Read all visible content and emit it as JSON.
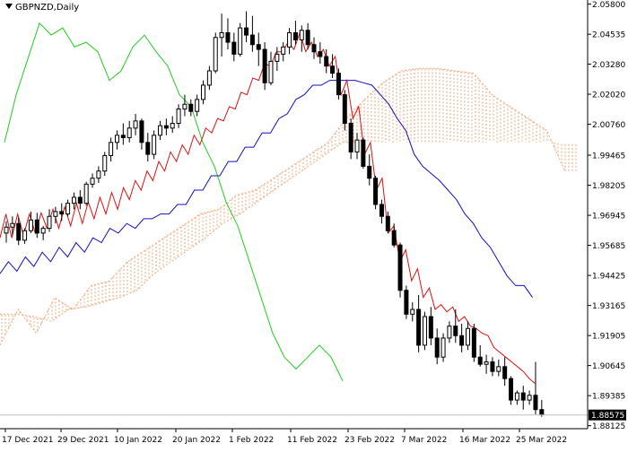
{
  "chart_data": {
    "type": "candlestick",
    "symbol": "GBPNZD",
    "timeframe": "Daily",
    "title": "GBPNZD,Daily",
    "y_ticks": [
      "2.05800",
      "2.04535",
      "2.03280",
      "2.02020",
      "2.00760",
      "1.99465",
      "1.98205",
      "1.96945",
      "1.95685",
      "1.94425",
      "1.93165",
      "1.91905",
      "1.90645",
      "1.89385",
      "1.88125"
    ],
    "ylim": [
      1.88,
      2.0597
    ],
    "x_ticks": [
      "17 Dec 2021",
      "29 Dec 2021",
      "10 Jan 2022",
      "20 Jan 2022",
      "1 Feb 2022",
      "11 Feb 2022",
      "23 Feb 2022",
      "7 Mar 2022",
      "16 Mar 2022",
      "25 Mar 2022"
    ],
    "current_price": "1.88575",
    "candles": [
      [
        1.962,
        1.967,
        1.958,
        1.9645
      ],
      [
        1.9645,
        1.969,
        1.961,
        1.966
      ],
      [
        1.966,
        1.9685,
        1.957,
        1.959
      ],
      [
        1.959,
        1.964,
        1.9575,
        1.963
      ],
      [
        1.963,
        1.971,
        1.962,
        1.9675
      ],
      [
        1.9675,
        1.9705,
        1.96,
        1.962
      ],
      [
        1.962,
        1.965,
        1.959,
        1.964
      ],
      [
        1.964,
        1.972,
        1.9625,
        1.969
      ],
      [
        1.969,
        1.973,
        1.966,
        1.971
      ],
      [
        1.971,
        1.9745,
        1.967,
        1.97
      ],
      [
        1.97,
        1.976,
        1.969,
        1.9745
      ],
      [
        1.9745,
        1.979,
        1.972,
        1.977
      ],
      [
        1.977,
        1.98,
        1.972,
        1.9745
      ],
      [
        1.9745,
        1.9835,
        1.9735,
        1.9825
      ],
      [
        1.9825,
        1.987,
        1.981,
        1.985
      ],
      [
        1.985,
        1.99,
        1.983,
        1.988
      ],
      [
        1.988,
        1.996,
        1.986,
        1.9945
      ],
      [
        1.9945,
        2.002,
        1.992,
        2.0
      ],
      [
        2.0,
        2.005,
        1.997,
        2.003
      ],
      [
        2.003,
        2.008,
        1.999,
        2.002
      ],
      [
        2.002,
        2.009,
        2.0,
        2.006
      ],
      [
        2.006,
        2.012,
        2.003,
        2.009
      ],
      [
        2.009,
        2.01,
        1.997,
        2.0
      ],
      [
        2.0,
        2.004,
        1.992,
        1.995
      ],
      [
        1.995,
        2.005,
        1.993,
        2.003
      ],
      [
        2.003,
        2.009,
        2.001,
        2.007
      ],
      [
        2.007,
        2.01,
        2.003,
        2.006
      ],
      [
        2.006,
        2.011,
        2.004,
        2.008
      ],
      [
        2.008,
        2.016,
        2.006,
        2.014
      ],
      [
        2.014,
        2.02,
        2.011,
        2.016
      ],
      [
        2.016,
        2.018,
        2.011,
        2.013
      ],
      [
        2.013,
        2.02,
        2.011,
        2.018
      ],
      [
        2.018,
        2.026,
        2.016,
        2.024
      ],
      [
        2.024,
        2.032,
        2.022,
        2.03
      ],
      [
        2.03,
        2.046,
        2.029,
        2.044
      ],
      [
        2.044,
        2.054,
        2.036,
        2.046
      ],
      [
        2.046,
        2.052,
        2.039,
        2.042
      ],
      [
        2.042,
        2.046,
        2.034,
        2.037
      ],
      [
        2.037,
        2.05,
        2.036,
        2.048
      ],
      [
        2.048,
        2.055,
        2.042,
        2.045
      ],
      [
        2.045,
        2.053,
        2.038,
        2.041
      ],
      [
        2.041,
        2.046,
        2.032,
        2.039
      ],
      [
        2.039,
        2.042,
        2.022,
        2.025
      ],
      [
        2.025,
        2.038,
        2.024,
        2.034
      ],
      [
        2.034,
        2.04,
        2.03,
        2.037
      ],
      [
        2.037,
        2.042,
        2.034,
        2.04
      ],
      [
        2.04,
        2.048,
        2.037,
        2.046
      ],
      [
        2.046,
        2.051,
        2.041,
        2.043
      ],
      [
        2.043,
        2.049,
        2.038,
        2.047
      ],
      [
        2.047,
        2.05,
        2.039,
        2.041
      ],
      [
        2.041,
        2.044,
        2.035,
        2.038
      ],
      [
        2.038,
        2.042,
        2.033,
        2.036
      ],
      [
        2.036,
        2.039,
        2.029,
        2.032
      ],
      [
        2.032,
        2.037,
        2.027,
        2.029
      ],
      [
        2.029,
        2.031,
        2.018,
        2.02
      ],
      [
        2.02,
        2.022,
        2.005,
        2.008
      ],
      [
        2.008,
        2.01,
        1.993,
        1.996
      ],
      [
        1.996,
        2.004,
        1.993,
        2.001
      ],
      [
        2.001,
        2.002,
        1.989,
        1.99
      ],
      [
        1.99,
        1.995,
        1.982,
        1.985
      ],
      [
        1.985,
        1.986,
        1.972,
        1.974
      ],
      [
        1.974,
        1.976,
        1.966,
        1.969
      ],
      [
        1.969,
        1.971,
        1.962,
        1.963
      ],
      [
        1.963,
        1.966,
        1.956,
        1.957
      ],
      [
        1.957,
        1.958,
        1.935,
        1.938
      ],
      [
        1.938,
        1.94,
        1.926,
        1.928
      ],
      [
        1.928,
        1.933,
        1.925,
        1.93
      ],
      [
        1.93,
        1.936,
        1.912,
        1.915
      ],
      [
        1.915,
        1.929,
        1.913,
        1.927
      ],
      [
        1.927,
        1.931,
        1.915,
        1.918
      ],
      [
        1.918,
        1.922,
        1.907,
        1.91
      ],
      [
        1.91,
        1.92,
        1.908,
        1.918
      ],
      [
        1.918,
        1.925,
        1.916,
        1.923
      ],
      [
        1.923,
        1.93,
        1.916,
        1.919
      ],
      [
        1.919,
        1.924,
        1.912,
        1.915
      ],
      [
        1.915,
        1.925,
        1.913,
        1.922
      ],
      [
        1.922,
        1.924,
        1.908,
        1.91
      ],
      [
        1.91,
        1.915,
        1.906,
        1.907
      ],
      [
        1.907,
        1.911,
        1.903,
        1.908
      ],
      [
        1.908,
        1.91,
        1.902,
        1.904
      ],
      [
        1.904,
        1.909,
        1.902,
        1.906
      ],
      [
        1.906,
        1.91,
        1.898,
        1.901
      ],
      [
        1.901,
        1.902,
        1.89,
        1.892
      ],
      [
        1.892,
        1.896,
        1.89,
        1.895
      ],
      [
        1.895,
        1.898,
        1.888,
        1.892
      ],
      [
        1.892,
        1.896,
        1.89,
        1.894
      ],
      [
        1.894,
        1.908,
        1.886,
        1.888
      ],
      [
        1.888,
        1.892,
        1.885,
        1.886
      ]
    ],
    "tenkan": [
      [
        1.96,
        1.97
      ],
      [
        1.96,
        1.97
      ],
      [
        1.961,
        1.97
      ],
      [
        1.962,
        1.9705
      ],
      [
        1.964,
        1.972
      ],
      [
        1.964,
        1.973
      ],
      [
        1.965,
        1.9745
      ],
      [
        1.966,
        1.975
      ],
      [
        1.968,
        1.977
      ],
      [
        1.97,
        1.979
      ],
      [
        1.972,
        1.981
      ],
      [
        1.976,
        1.984
      ],
      [
        1.98,
        1.988
      ],
      [
        1.984,
        1.992
      ],
      [
        1.988,
        1.996
      ],
      [
        1.992,
        1.999
      ],
      [
        1.995,
        2.003
      ],
      [
        1.999,
        2.006
      ],
      [
        2.004,
        2.01
      ],
      [
        2.009,
        2.015
      ],
      [
        2.014,
        2.021
      ],
      [
        2.02,
        2.027
      ],
      [
        2.026,
        2.033
      ],
      [
        2.032,
        2.038
      ],
      [
        2.038,
        2.042
      ],
      [
        2.039,
        2.046
      ],
      [
        2.038,
        2.042
      ],
      [
        2.036,
        2.039
      ],
      [
        2.032,
        2.036
      ],
      [
        2.02,
        2.026
      ],
      [
        2.01,
        2.015
      ],
      [
        1.995,
        2.0
      ],
      [
        1.98,
        1.985
      ],
      [
        1.962,
        1.965
      ],
      [
        1.95,
        1.955
      ],
      [
        1.942,
        1.947
      ],
      [
        1.935,
        1.939
      ],
      [
        1.93,
        1.932
      ],
      [
        1.929,
        1.931
      ],
      [
        1.925,
        1.927
      ],
      [
        1.923,
        1.922
      ],
      [
        1.92,
        1.919
      ],
      [
        1.914,
        1.912
      ],
      [
        1.91,
        1.908
      ],
      [
        1.906,
        1.904
      ],
      [
        1.901,
        1.899
      ]
    ],
    "kijun": [
      [
        1.945,
        1.95
      ],
      [
        1.946,
        1.952
      ],
      [
        1.948,
        1.954
      ],
      [
        1.95,
        1.956
      ],
      [
        1.952,
        1.958
      ],
      [
        1.954,
        1.96
      ],
      [
        1.958,
        1.964
      ],
      [
        1.962,
        1.966
      ],
      [
        1.964,
        1.968
      ],
      [
        1.968,
        1.97
      ],
      [
        1.97,
        1.974
      ],
      [
        1.974,
        1.98
      ],
      [
        1.98,
        1.986
      ],
      [
        1.986,
        1.992
      ],
      [
        1.992,
        1.998
      ],
      [
        1.998,
        2.004
      ],
      [
        2.004,
        2.01
      ],
      [
        2.012,
        2.018
      ],
      [
        2.02,
        2.024
      ],
      [
        2.024,
        2.026
      ],
      [
        2.026,
        2.026
      ],
      [
        2.026,
        2.025
      ],
      [
        2.024,
        2.02
      ],
      [
        2.016,
        2.01
      ],
      [
        2.005,
        1.995
      ],
      [
        1.99,
        1.987
      ],
      [
        1.984,
        1.98
      ],
      [
        1.976,
        1.97
      ],
      [
        1.966,
        1.96
      ],
      [
        1.956,
        1.95
      ],
      [
        1.944,
        1.94
      ],
      [
        1.94,
        1.935
      ]
    ],
    "chikou": [
      [
        2.0,
        2.02
      ],
      [
        2.035,
        2.05
      ],
      [
        2.045,
        2.048
      ],
      [
        2.04,
        2.042
      ],
      [
        2.038,
        2.026
      ],
      [
        2.03,
        2.04
      ],
      [
        2.045,
        2.038
      ],
      [
        2.032,
        2.02
      ],
      [
        2.015,
        2.0
      ],
      [
        1.99,
        1.975
      ],
      [
        1.965,
        1.95
      ],
      [
        1.935,
        1.92
      ],
      [
        1.91,
        1.905
      ],
      [
        1.91,
        1.915
      ],
      [
        1.91,
        1.9
      ]
    ],
    "cloud_a": [
      [
        1.915,
        1.93
      ],
      [
        1.92,
        1.935
      ],
      [
        1.93,
        1.94
      ],
      [
        1.942,
        1.95
      ],
      [
        1.955,
        1.96
      ],
      [
        1.965,
        1.97
      ],
      [
        1.972,
        1.978
      ],
      [
        1.98,
        1.985
      ],
      [
        1.99,
        1.995
      ],
      [
        2.0,
        2.01
      ],
      [
        2.018,
        2.025
      ],
      [
        2.03,
        2.031
      ],
      [
        2.031,
        2.03
      ],
      [
        2.029,
        2.02
      ],
      [
        2.015,
        2.01
      ],
      [
        2.005,
        1.988
      ]
    ],
    "cloud_b": [
      [
        1.928,
        1.928
      ],
      [
        1.927,
        1.925
      ],
      [
        1.93,
        1.931
      ],
      [
        1.933,
        1.935
      ],
      [
        1.938,
        1.945
      ],
      [
        1.95,
        1.955
      ],
      [
        1.96,
        1.966
      ],
      [
        1.97,
        1.975
      ],
      [
        1.98,
        1.985
      ],
      [
        1.99,
        1.995
      ],
      [
        2.0,
        2.0
      ]
    ]
  }
}
